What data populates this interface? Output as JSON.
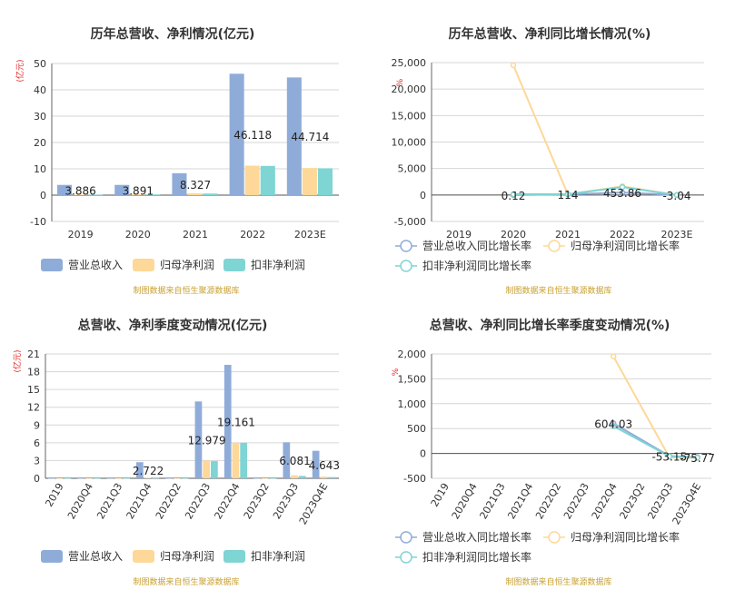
{
  "chart_data": [
    {
      "type": "bar",
      "title": "历年总营收、净利情况(亿元)",
      "unit_label": "(亿元)",
      "categories": [
        "2019",
        "2020",
        "2021",
        "2022",
        "2023E"
      ],
      "series": [
        {
          "name": "营业总收入",
          "color": "#8facd9",
          "values": [
            3.886,
            3.891,
            8.327,
            46.118,
            44.714
          ]
        },
        {
          "name": "归母净利润",
          "color": "#fdd898",
          "values": [
            0.2,
            0.3,
            0.7,
            11.2,
            10.3
          ]
        },
        {
          "name": "扣非净利润",
          "color": "#7fd4d4",
          "values": [
            0.15,
            0.25,
            0.6,
            11.1,
            10.2
          ]
        }
      ],
      "data_labels": [
        "3.886",
        "3.891",
        "8.327",
        "46.118",
        "44.714"
      ],
      "ylim": [
        -10,
        50
      ],
      "yticks": [
        "-10",
        "0",
        "10",
        "20",
        "30",
        "40",
        "50"
      ],
      "source": "制图数据来自恒生聚源数据库"
    },
    {
      "type": "line",
      "title": "历年总营收、净利同比增长情况(%)",
      "unit_label": "%",
      "categories": [
        "2019",
        "2020",
        "2021",
        "2022",
        "2023E"
      ],
      "series": [
        {
          "name": "营业总收入同比增长率",
          "color": "#8facd9",
          "values": [
            null,
            0.12,
            114,
            453.86,
            -3.04
          ]
        },
        {
          "name": "归母净利润同比增长率",
          "color": "#fdd898",
          "values": [
            null,
            24500,
            120,
            1650,
            -8
          ]
        },
        {
          "name": "扣非净利润同比增长率",
          "color": "#7fd4d4",
          "values": [
            null,
            150,
            140,
            1500,
            -10
          ]
        }
      ],
      "data_labels": [
        "",
        "0.12",
        "114",
        "453.86",
        "-3.04"
      ],
      "ylim": [
        -5000,
        25000
      ],
      "yticks": [
        "-5,000",
        "0",
        "5,000",
        "10,000",
        "15,000",
        "20,000",
        "25,000"
      ],
      "source": "制图数据来自恒生聚源数据库"
    },
    {
      "type": "bar",
      "title": "总营收、净利季度变动情况(亿元)",
      "unit_label": "(亿元)",
      "categories": [
        "2019",
        "2020Q4",
        "2021Q3",
        "2021Q4",
        "2022Q2",
        "2022Q3",
        "2022Q4",
        "2023Q2",
        "2023Q3",
        "2023Q4E"
      ],
      "series": [
        {
          "name": "营业总收入",
          "color": "#8facd9",
          "values": [
            0,
            0,
            0,
            2.722,
            0,
            12.979,
            19.161,
            0,
            6.081,
            4.643
          ]
        },
        {
          "name": "归母净利润",
          "color": "#fdd898",
          "values": [
            0,
            0,
            0,
            0.1,
            0,
            3,
            6,
            0,
            0.5,
            0.3
          ]
        },
        {
          "name": "扣非净利润",
          "color": "#7fd4d4",
          "values": [
            0,
            0,
            0,
            0.05,
            0,
            2.9,
            6,
            0,
            0.4,
            0.2
          ]
        }
      ],
      "data_labels": [
        "",
        "",
        "",
        "2.722",
        "",
        "12.979",
        "19.161",
        "",
        "6.081",
        "4.643"
      ],
      "ylim": [
        0,
        21
      ],
      "yticks": [
        "0",
        "3",
        "6",
        "9",
        "12",
        "15",
        "18",
        "21"
      ],
      "source": "制图数据来自恒生聚源数据库"
    },
    {
      "type": "line",
      "title": "总营收、净利同比增长率季度变动情况(%)",
      "unit_label": "%",
      "categories": [
        "2019",
        "2020Q4",
        "2021Q3",
        "2021Q4",
        "2022Q2",
        "2022Q3",
        "2022Q4",
        "2023Q2",
        "2023Q3",
        "2023Q4E"
      ],
      "series": [
        {
          "name": "营业总收入同比增长率",
          "color": "#8facd9",
          "values": [
            null,
            null,
            null,
            null,
            null,
            null,
            604.03,
            null,
            -53.15,
            -75.77
          ]
        },
        {
          "name": "归母净利润同比增长率",
          "color": "#fdd898",
          "values": [
            null,
            null,
            null,
            null,
            null,
            null,
            1950,
            null,
            -80,
            -90
          ]
        },
        {
          "name": "扣非净利润同比增长率",
          "color": "#7fd4d4",
          "values": [
            null,
            null,
            null,
            null,
            null,
            null,
            550,
            null,
            -60,
            -85
          ]
        }
      ],
      "data_labels": [
        "",
        "",
        "",
        "",
        "",
        "",
        "604.03",
        "",
        "-53.15",
        "-75.77"
      ],
      "ylim": [
        -500,
        2000
      ],
      "yticks": [
        "-500",
        "0",
        "500",
        "1,000",
        "1,500",
        "2,000"
      ],
      "source": "制图数据来自恒生聚源数据库"
    }
  ]
}
